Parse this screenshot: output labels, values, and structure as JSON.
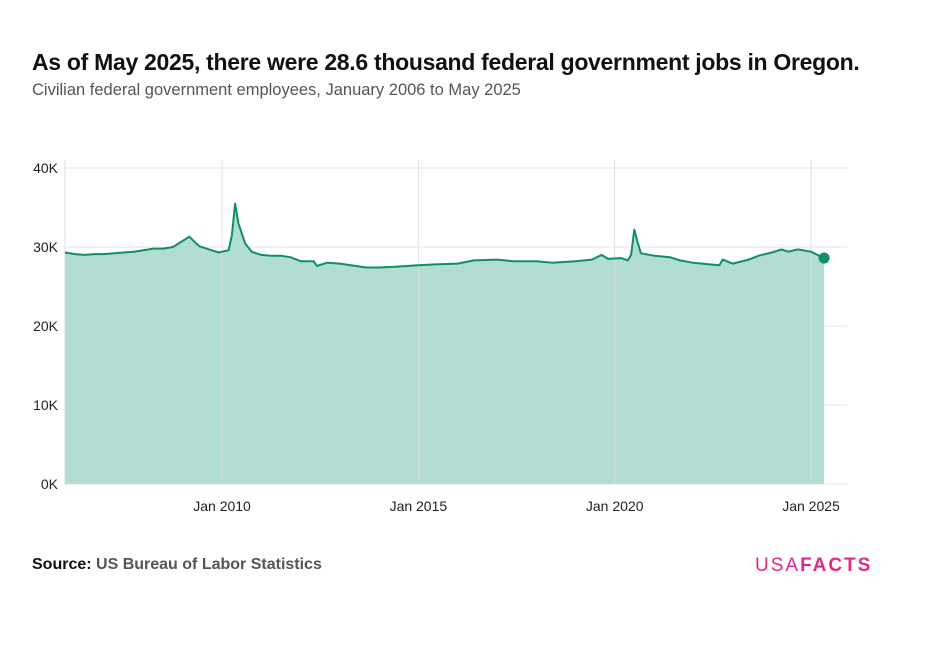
{
  "header": {
    "title": "As of May 2025, there were 28.6 thousand federal government jobs in Oregon.",
    "subtitle": "Civilian federal government employees, January 2006 to May 2025"
  },
  "footer": {
    "source_label": "Source:",
    "source_text": "US Bureau of Labor Statistics",
    "logo_usa": "USA",
    "logo_facts": "FACTS"
  },
  "colors": {
    "line": "#0e8f6a",
    "area": "#b2ddd2",
    "accent": "#e0278a"
  },
  "chart_data": {
    "type": "area",
    "title": "As of May 2025, there were 28.6 thousand federal government jobs in Oregon.",
    "subtitle": "Civilian federal government employees, January 2006 to May 2025",
    "xlabel": "",
    "ylabel": "",
    "ylim": [
      0,
      40000
    ],
    "xlim": [
      "2006-01",
      "2025-12"
    ],
    "y_ticks": [
      0,
      10000,
      20000,
      30000,
      40000
    ],
    "y_tick_labels": [
      "0K",
      "10K",
      "20K",
      "30K",
      "40K"
    ],
    "x_ticks": [
      "2010-01",
      "2015-01",
      "2020-01",
      "2025-01"
    ],
    "x_tick_labels": [
      "Jan 2010",
      "Jan 2015",
      "Jan 2020",
      "Jan 2025"
    ],
    "grid": true,
    "series": [
      {
        "points": [
          [
            "2006-01",
            29300
          ],
          [
            "2006-04",
            29100
          ],
          [
            "2006-07",
            29000
          ],
          [
            "2006-10",
            29100
          ],
          [
            "2007-01",
            29100
          ],
          [
            "2007-04",
            29200
          ],
          [
            "2007-07",
            29300
          ],
          [
            "2007-10",
            29400
          ],
          [
            "2008-01",
            29600
          ],
          [
            "2008-04",
            29800
          ],
          [
            "2008-07",
            29800
          ],
          [
            "2008-10",
            30000
          ],
          [
            "2009-03",
            31300
          ],
          [
            "2009-06",
            30100
          ],
          [
            "2009-09",
            29700
          ],
          [
            "2009-12",
            29300
          ],
          [
            "2010-03",
            29600
          ],
          [
            "2010-04",
            31500
          ],
          [
            "2010-05",
            35500
          ],
          [
            "2010-06",
            33000
          ],
          [
            "2010-08",
            30500
          ],
          [
            "2010-10",
            29400
          ],
          [
            "2011-01",
            29000
          ],
          [
            "2011-04",
            28900
          ],
          [
            "2011-07",
            28900
          ],
          [
            "2011-10",
            28700
          ],
          [
            "2012-01",
            28200
          ],
          [
            "2012-05",
            28200
          ],
          [
            "2012-06",
            27600
          ],
          [
            "2012-09",
            28000
          ],
          [
            "2013-01",
            27900
          ],
          [
            "2013-06",
            27600
          ],
          [
            "2013-09",
            27400
          ],
          [
            "2014-01",
            27400
          ],
          [
            "2014-06",
            27500
          ],
          [
            "2015-01",
            27700
          ],
          [
            "2015-06",
            27800
          ],
          [
            "2016-01",
            27900
          ],
          [
            "2016-06",
            28300
          ],
          [
            "2017-01",
            28400
          ],
          [
            "2017-06",
            28200
          ],
          [
            "2018-01",
            28200
          ],
          [
            "2018-06",
            28000
          ],
          [
            "2019-01",
            28200
          ],
          [
            "2019-06",
            28400
          ],
          [
            "2019-09",
            29000
          ],
          [
            "2019-11",
            28500
          ],
          [
            "2020-03",
            28600
          ],
          [
            "2020-05",
            28300
          ],
          [
            "2020-06",
            29000
          ],
          [
            "2020-07",
            32200
          ],
          [
            "2020-08",
            30600
          ],
          [
            "2020-09",
            29200
          ],
          [
            "2021-01",
            28900
          ],
          [
            "2021-06",
            28700
          ],
          [
            "2021-09",
            28300
          ],
          [
            "2022-01",
            28000
          ],
          [
            "2022-06",
            27800
          ],
          [
            "2022-09",
            27700
          ],
          [
            "2022-10",
            28400
          ],
          [
            "2023-01",
            27900
          ],
          [
            "2023-06",
            28400
          ],
          [
            "2023-09",
            28900
          ],
          [
            "2024-01",
            29300
          ],
          [
            "2024-04",
            29700
          ],
          [
            "2024-06",
            29400
          ],
          [
            "2024-09",
            29700
          ],
          [
            "2025-01",
            29400
          ],
          [
            "2025-05",
            28600
          ]
        ]
      }
    ],
    "last_point": {
      "x": "2025-05",
      "y": 28600
    }
  }
}
